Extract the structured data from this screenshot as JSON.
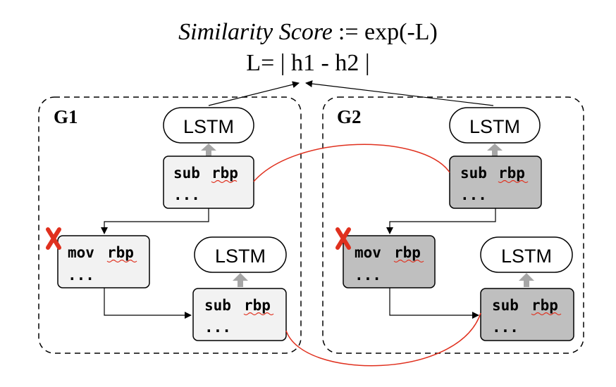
{
  "formula": {
    "score_name": "Similarity Score",
    "score_def": ":= exp(-L)",
    "loss": "L= | h1 - h2 |"
  },
  "graphs": [
    {
      "label": "G1",
      "lstm_top": "LSTM",
      "lstm_bottom": "LSTM",
      "block_top": {
        "op": "sub",
        "arg": "rbp",
        "more": "..."
      },
      "block_left": {
        "op": "mov",
        "arg": "rbp",
        "more": "..."
      },
      "block_right": {
        "op": "sub",
        "arg": "rbp",
        "more": "..."
      }
    },
    {
      "label": "G2",
      "lstm_top": "LSTM",
      "lstm_bottom": "LSTM",
      "block_top": {
        "op": "sub",
        "arg": "rbp",
        "more": "..."
      },
      "block_left": {
        "op": "mov",
        "arg": "rbp",
        "more": "..."
      },
      "block_right": {
        "op": "sub",
        "arg": "rbp",
        "more": "..."
      }
    }
  ],
  "colors": {
    "g1_block_fill": "#f2f2f2",
    "g2_block_fill": "#bfbfbf",
    "match_line": "#e0301e",
    "cross_mark": "#e0301e",
    "up_arrow": "#a6a6a6"
  },
  "icons": {
    "removed_block": "cross-mark-icon"
  }
}
